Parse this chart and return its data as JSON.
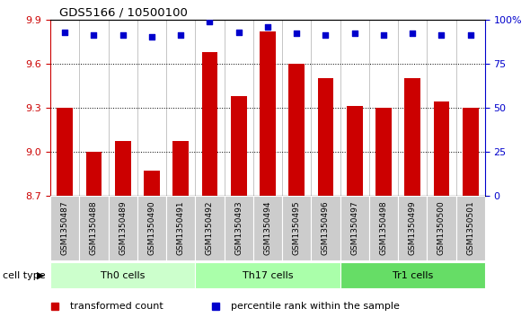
{
  "title": "GDS5166 / 10500100",
  "samples": [
    "GSM1350487",
    "GSM1350488",
    "GSM1350489",
    "GSM1350490",
    "GSM1350491",
    "GSM1350492",
    "GSM1350493",
    "GSM1350494",
    "GSM1350495",
    "GSM1350496",
    "GSM1350497",
    "GSM1350498",
    "GSM1350499",
    "GSM1350500",
    "GSM1350501"
  ],
  "bar_values": [
    9.3,
    9.0,
    9.07,
    8.87,
    9.07,
    9.68,
    9.38,
    9.82,
    9.6,
    9.5,
    9.31,
    9.3,
    9.5,
    9.34,
    9.3
  ],
  "dot_values": [
    93,
    91,
    91,
    90,
    91,
    99,
    93,
    96,
    92,
    91,
    92,
    91,
    92,
    91,
    91
  ],
  "groups": [
    {
      "label": "Th0 cells",
      "start": 0,
      "end": 5,
      "color": "#ccffcc"
    },
    {
      "label": "Th17 cells",
      "start": 5,
      "end": 10,
      "color": "#aaffaa"
    },
    {
      "label": "Tr1 cells",
      "start": 10,
      "end": 15,
      "color": "#66dd66"
    }
  ],
  "ylim_left": [
    8.7,
    9.9
  ],
  "ylim_right": [
    0,
    100
  ],
  "yticks_left": [
    8.7,
    9.0,
    9.3,
    9.6,
    9.9
  ],
  "yticks_right": [
    0,
    25,
    50,
    75,
    100
  ],
  "bar_color": "#cc0000",
  "dot_color": "#0000cc",
  "left_axis_color": "#cc0000",
  "right_axis_color": "#0000cc",
  "xtick_bg_color": "#cccccc",
  "cell_type_label": "cell type",
  "bar_width": 0.55,
  "legend_items": [
    {
      "label": "transformed count",
      "color": "#cc0000"
    },
    {
      "label": "percentile rank within the sample",
      "color": "#0000cc"
    }
  ]
}
